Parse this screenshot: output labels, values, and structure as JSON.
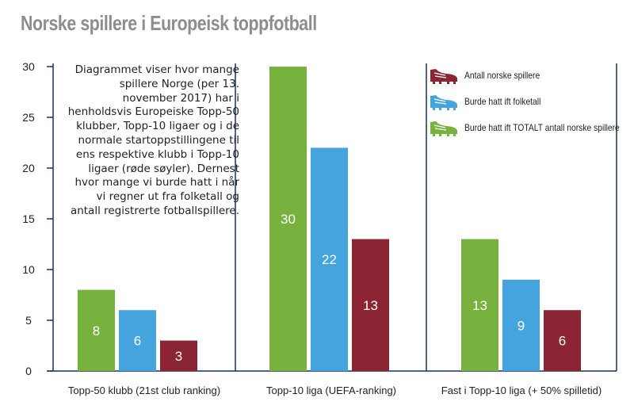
{
  "title": "Norske spillere i Europeisk toppfotball",
  "note": "Diagrammet viser hvor mange spillere Norge (per 13. november 2017) har i henholdsvis Europeiske Topp-50 klubber, Topp-10 ligaer og i de normale startoppstillingene til ens respektive klubb i Topp-10 ligaer (røde søyler). Dernest hvor mange vi burde hatt i når vi regner ut fra folketall og antall registrerte fotballspillere.",
  "colors": {
    "green": "#77b23f",
    "blue": "#45a4dd",
    "red": "#8b2433",
    "axis": "#1c2e5c"
  },
  "legend": [
    {
      "label": "Antall norske spillere",
      "color": "#8b2433",
      "icon": "football-boot-icon"
    },
    {
      "label": "Burde hatt ift folketall",
      "color": "#45a4dd",
      "icon": "football-boot-icon"
    },
    {
      "label": "Burde hatt ift TOTALT antall norske spillere",
      "color": "#77b23f",
      "icon": "football-boot-icon"
    }
  ],
  "chart_data": {
    "type": "bar",
    "categories": [
      "Topp-50 klubb (21st club ranking)",
      "Topp-10 liga (UEFA-ranking)",
      "Fast i Topp-10 liga (+ 50% spilletid)"
    ],
    "series": [
      {
        "name": "Burde hatt ift TOTALT antall norske spillere",
        "color": "#77b23f",
        "values": [
          8,
          30,
          13
        ]
      },
      {
        "name": "Burde hatt ift folketall",
        "color": "#45a4dd",
        "values": [
          6,
          22,
          9
        ]
      },
      {
        "name": "Antall norske spillere",
        "color": "#8b2433",
        "values": [
          3,
          13,
          6
        ]
      }
    ],
    "data_labels": [
      [
        "8",
        "6",
        "3"
      ],
      [
        "30",
        "22",
        "13"
      ],
      [
        "13",
        "9",
        "6"
      ]
    ],
    "yticks": [
      "0",
      "5",
      "10",
      "15",
      "20",
      "25",
      "30"
    ],
    "ylim": [
      0,
      30
    ],
    "grid": false,
    "legend_position": "top-right"
  }
}
